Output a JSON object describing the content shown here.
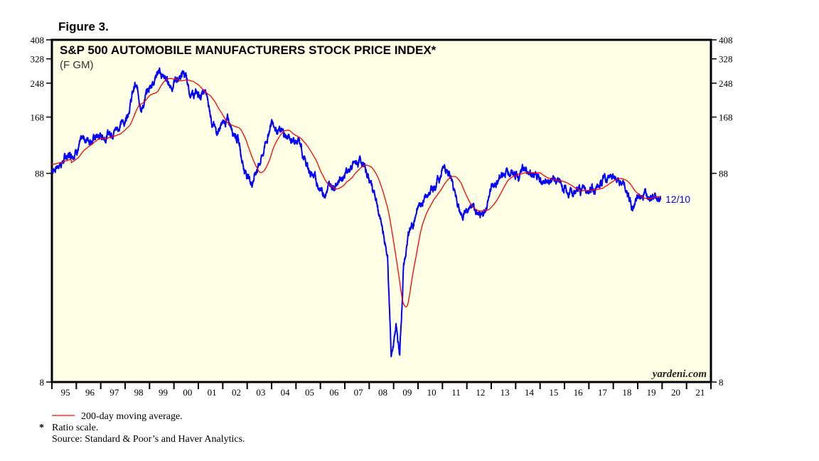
{
  "figure_label": "Figure 3.",
  "chart_data": {
    "type": "line",
    "title": "S&P 500 AUTOMOBILE MANUFACTURERS STOCK PRICE INDEX*",
    "subtitle": "(F GM)",
    "y_scale": "log",
    "ylim": [
      8,
      408
    ],
    "y_ticks": [
      8,
      88,
      168,
      248,
      328,
      408
    ],
    "xlim": [
      1995,
      2022
    ],
    "x_tick_labels": [
      "95",
      "96",
      "97",
      "98",
      "99",
      "00",
      "01",
      "02",
      "03",
      "04",
      "05",
      "06",
      "07",
      "08",
      "09",
      "10",
      "11",
      "12",
      "13",
      "14",
      "15",
      "16",
      "17",
      "18",
      "19",
      "20",
      "21"
    ],
    "series": [
      {
        "name": "S&P 500 Automobile Manufacturers Index",
        "color": "#0000ff",
        "x": [
          1995.0,
          1995.8,
          1996.4,
          1997.2,
          1998.0,
          1998.4,
          1998.7,
          1999.3,
          1999.9,
          2000.4,
          2000.7,
          2001.3,
          2001.7,
          2002.2,
          2002.6,
          2002.9,
          2003.2,
          2003.65,
          2004.0,
          2004.5,
          2005.1,
          2005.4,
          2006.1,
          2006.55,
          2007.1,
          2007.7,
          2008.2,
          2008.45,
          2008.75,
          2008.9,
          2009.1,
          2009.25,
          2009.4,
          2009.6,
          2010.05,
          2010.5,
          2010.95,
          2011.1,
          2011.5,
          2011.8,
          2012.25,
          2012.6,
          2013.0,
          2013.55,
          2014.15,
          2014.6,
          2015.0,
          2015.6,
          2016.2,
          2016.75,
          2017.35,
          2017.85,
          2018.35,
          2018.8,
          2019.1,
          2019.5,
          2019.94
        ],
        "y": [
          91,
          111,
          131,
          136,
          161,
          242,
          190,
          284,
          242,
          280,
          214,
          221,
          142,
          161,
          136,
          91,
          80,
          111,
          161,
          136,
          126,
          98,
          71,
          78,
          91,
          102,
          71,
          51,
          34,
          10.8,
          15,
          10.8,
          29,
          43,
          60,
          71,
          87,
          100,
          71,
          55,
          60,
          50,
          74,
          91,
          87,
          91,
          80,
          84,
          68,
          74,
          74,
          87,
          78,
          60,
          68,
          72,
          65
        ]
      },
      {
        "name": "200-day moving average.",
        "color": "#ff0000",
        "window_days": 200
      }
    ],
    "end_label": "12/10",
    "legend": "bottom-left"
  },
  "watermark": "yardeni.com",
  "notes": {
    "ma_legend": "200-day moving average.",
    "asterisk": "*",
    "ratio": "Ratio scale.",
    "source": "Source: Standard & Poor’s and Haver Analytics."
  }
}
